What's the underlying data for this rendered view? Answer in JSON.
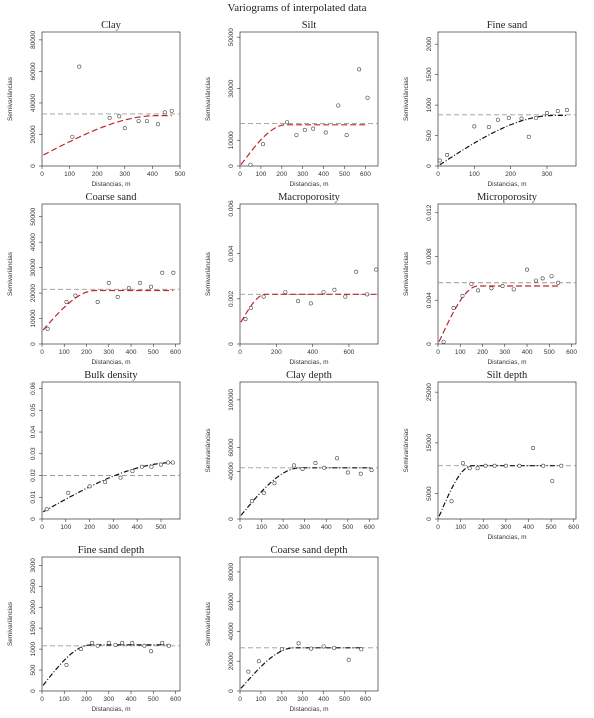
{
  "page_title": "Variograms of interpolated data",
  "colors": {
    "red_model": "#c0262c",
    "black_model": "#111111",
    "sill_line": "#999999",
    "point_stroke": "#444444"
  },
  "chart_data": [
    {
      "type": "scatter",
      "title": "Clay",
      "xlabel": "Distancias, m",
      "ylabel": "Semivariâncias",
      "xticks": [
        0,
        100,
        200,
        300,
        400,
        500
      ],
      "yticks": [
        0,
        20000,
        40000,
        60000,
        80000
      ],
      "xlim": [
        0,
        500
      ],
      "ylim": [
        0,
        85000
      ],
      "points": [
        [
          110,
          18500
        ],
        [
          135,
          63000
        ],
        [
          245,
          30500
        ],
        [
          280,
          31500
        ],
        [
          300,
          24000
        ],
        [
          350,
          28500
        ],
        [
          380,
          28500
        ],
        [
          420,
          26500
        ],
        [
          445,
          34000
        ],
        [
          470,
          35000
        ]
      ],
      "model": {
        "nugget": 6500,
        "sill": 32000,
        "range": 420,
        "kind": "spherical",
        "style": "red-dashed"
      },
      "sill_line": 33000
    },
    {
      "type": "scatter",
      "title": "Silt",
      "xlabel": "Distancias, m",
      "ylabel": "Semivariâncias",
      "xticks": [
        0,
        100,
        200,
        300,
        400,
        500,
        600
      ],
      "yticks": [
        0,
        10000,
        30000,
        50000
      ],
      "xlim": [
        0,
        660
      ],
      "ylim": [
        0,
        52000
      ],
      "points": [
        [
          50,
          500
        ],
        [
          110,
          8500
        ],
        [
          225,
          17000
        ],
        [
          270,
          12000
        ],
        [
          310,
          14000
        ],
        [
          350,
          14500
        ],
        [
          410,
          13000
        ],
        [
          470,
          23500
        ],
        [
          510,
          12000
        ],
        [
          570,
          37500
        ],
        [
          610,
          26500
        ]
      ],
      "model": {
        "nugget": 0,
        "sill": 16000,
        "range": 220,
        "kind": "spherical",
        "style": "red-dashed"
      },
      "sill_line": 16500
    },
    {
      "type": "scatter",
      "title": "Fine sand",
      "xlabel": "Distancias, m",
      "ylabel": "Semivariâncias",
      "xticks": [
        0,
        100,
        200,
        300
      ],
      "yticks": [
        0,
        500,
        1000,
        1500,
        2000
      ],
      "xlim": [
        0,
        380
      ],
      "ylim": [
        0,
        2200
      ],
      "points": [
        [
          5,
          90
        ],
        [
          25,
          180
        ],
        [
          100,
          650
        ],
        [
          140,
          640
        ],
        [
          165,
          760
        ],
        [
          195,
          790
        ],
        [
          230,
          780
        ],
        [
          250,
          480
        ],
        [
          270,
          790
        ],
        [
          300,
          870
        ],
        [
          330,
          900
        ],
        [
          355,
          920
        ]
      ],
      "model": {
        "nugget": 0,
        "sill": 830,
        "range": 320,
        "kind": "spherical",
        "style": "black-dashdot"
      },
      "sill_line": 840
    },
    {
      "type": "scatter",
      "title": "Coarse sand",
      "xlabel": "Distancias, m",
      "ylabel": "Semivariâncias",
      "xticks": [
        0,
        100,
        200,
        300,
        400,
        500,
        600
      ],
      "yticks": [
        0,
        10000,
        20000,
        30000,
        40000,
        50000
      ],
      "xlim": [
        0,
        620
      ],
      "ylim": [
        0,
        55000
      ],
      "points": [
        [
          25,
          6000
        ],
        [
          110,
          16500
        ],
        [
          150,
          19000
        ],
        [
          250,
          16500
        ],
        [
          300,
          24000
        ],
        [
          340,
          18500
        ],
        [
          390,
          22000
        ],
        [
          440,
          24000
        ],
        [
          490,
          22500
        ],
        [
          540,
          28000
        ],
        [
          590,
          28000
        ]
      ],
      "model": {
        "nugget": 5000,
        "sill": 21000,
        "range": 240,
        "kind": "spherical",
        "style": "red-dashed"
      },
      "sill_line": 21500
    },
    {
      "type": "scatter",
      "title": "Macroporosity",
      "xlabel": "Distancias, m",
      "ylabel": "Semivariâncias",
      "xticks": [
        0,
        200,
        400,
        600
      ],
      "yticks": [
        0,
        0.002,
        0.004,
        0.006
      ],
      "xlim": [
        0,
        760
      ],
      "ylim": [
        0,
        0.0062
      ],
      "points": [
        [
          30,
          0.0011
        ],
        [
          60,
          0.0016
        ],
        [
          130,
          0.0021
        ],
        [
          250,
          0.0023
        ],
        [
          320,
          0.0019
        ],
        [
          390,
          0.0018
        ],
        [
          460,
          0.0023
        ],
        [
          520,
          0.0024
        ],
        [
          580,
          0.0021
        ],
        [
          640,
          0.0032
        ],
        [
          700,
          0.0022
        ],
        [
          750,
          0.0033
        ]
      ],
      "model": {
        "nugget": 0.0009,
        "sill": 0.0022,
        "range": 140,
        "kind": "spherical",
        "style": "red-dashed"
      },
      "sill_line": 0.0022
    },
    {
      "type": "scatter",
      "title": "Microporosity",
      "xlabel": "Distancias, m",
      "ylabel": "Semivariâncias",
      "xticks": [
        0,
        100,
        200,
        300,
        400,
        500,
        600
      ],
      "yticks": [
        0,
        0.004,
        0.008,
        0.012
      ],
      "xlim": [
        0,
        620
      ],
      "ylim": [
        0,
        0.0128
      ],
      "points": [
        [
          25,
          0.0002
        ],
        [
          70,
          0.0033
        ],
        [
          110,
          0.0044
        ],
        [
          150,
          0.0055
        ],
        [
          180,
          0.0049
        ],
        [
          240,
          0.0051
        ],
        [
          290,
          0.0053
        ],
        [
          340,
          0.005
        ],
        [
          400,
          0.0068
        ],
        [
          440,
          0.0058
        ],
        [
          470,
          0.006
        ],
        [
          510,
          0.0062
        ],
        [
          540,
          0.0056
        ]
      ],
      "model": {
        "nugget": 0,
        "sill": 0.0053,
        "range": 180,
        "kind": "spherical",
        "style": "red-dashed"
      },
      "sill_line": 0.0056
    },
    {
      "type": "scatter",
      "title": "Bulk density",
      "xlabel": "",
      "ylabel": "",
      "xticks": [
        0,
        100,
        200,
        300,
        400,
        500
      ],
      "yticks": [
        0,
        0.01,
        0.02,
        0.03,
        0.04,
        0.05,
        0.06
      ],
      "xlim": [
        0,
        580
      ],
      "ylim": [
        0,
        0.063
      ],
      "points": [
        [
          20,
          0.0045
        ],
        [
          110,
          0.012
        ],
        [
          200,
          0.015
        ],
        [
          265,
          0.017
        ],
        [
          330,
          0.019
        ],
        [
          380,
          0.022
        ],
        [
          420,
          0.024
        ],
        [
          460,
          0.024
        ],
        [
          500,
          0.025
        ],
        [
          530,
          0.026
        ],
        [
          550,
          0.026
        ]
      ],
      "model": {
        "nugget": 0.003,
        "sill": 0.026,
        "range": 560,
        "kind": "spherical",
        "style": "black-dashdot"
      },
      "sill_line": 0.02
    },
    {
      "type": "scatter",
      "title": "Clay depth",
      "xlabel": "",
      "ylabel": "Semivariâncias",
      "xticks": [
        0,
        100,
        200,
        300,
        400,
        500,
        600
      ],
      "yticks": [
        0,
        40000,
        60000,
        100000
      ],
      "xlim": [
        0,
        640
      ],
      "ylim": [
        0,
        115000
      ],
      "points": [
        [
          55,
          15000
        ],
        [
          110,
          22000
        ],
        [
          160,
          30000
        ],
        [
          250,
          45000
        ],
        [
          290,
          42000
        ],
        [
          350,
          47000
        ],
        [
          390,
          43000
        ],
        [
          450,
          51000
        ],
        [
          500,
          39000
        ],
        [
          560,
          38000
        ],
        [
          610,
          41000
        ]
      ],
      "model": {
        "nugget": 2000,
        "sill": 43000,
        "range": 280,
        "kind": "spherical",
        "style": "black-dashdot"
      },
      "sill_line": 43000
    },
    {
      "type": "scatter",
      "title": "Silt depth",
      "xlabel": "Distancias, m",
      "ylabel": "Semivariâncias",
      "xticks": [
        0,
        100,
        200,
        300,
        400,
        500,
        600
      ],
      "yticks": [
        0,
        5000,
        15000,
        25000
      ],
      "xlim": [
        0,
        610
      ],
      "ylim": [
        0,
        27000
      ],
      "points": [
        [
          60,
          3500
        ],
        [
          110,
          11000
        ],
        [
          140,
          10000
        ],
        [
          175,
          10000
        ],
        [
          210,
          10500
        ],
        [
          250,
          10500
        ],
        [
          300,
          10500
        ],
        [
          360,
          10500
        ],
        [
          420,
          14000
        ],
        [
          465,
          10500
        ],
        [
          505,
          7500
        ],
        [
          545,
          10500
        ]
      ],
      "model": {
        "nugget": 0,
        "sill": 10500,
        "range": 150,
        "kind": "spherical",
        "style": "black-dashdot"
      },
      "sill_line": 10500
    },
    {
      "type": "scatter",
      "title": "Fine sand depth",
      "xlabel": "Distancias, m",
      "ylabel": "Semivariâncias",
      "xticks": [
        0,
        100,
        200,
        300,
        400,
        500,
        600
      ],
      "yticks": [
        0,
        500,
        1000,
        1500,
        2000,
        2500,
        3000
      ],
      "xlim": [
        0,
        620
      ],
      "ylim": [
        0,
        3200
      ],
      "points": [
        [
          110,
          620
        ],
        [
          175,
          1000
        ],
        [
          225,
          1150
        ],
        [
          250,
          1080
        ],
        [
          300,
          1150
        ],
        [
          330,
          1100
        ],
        [
          360,
          1150
        ],
        [
          405,
          1150
        ],
        [
          460,
          1080
        ],
        [
          490,
          950
        ],
        [
          540,
          1150
        ],
        [
          570,
          1080
        ]
      ],
      "model": {
        "nugget": 100,
        "sill": 1100,
        "range": 220,
        "kind": "spherical",
        "style": "black-dashdot"
      },
      "sill_line": 1080
    },
    {
      "type": "scatter",
      "title": "Coarse sand depth",
      "xlabel": "Distancias, m",
      "ylabel": "Semivariâncias",
      "xticks": [
        0,
        100,
        200,
        300,
        400,
        500,
        600
      ],
      "yticks": [
        0,
        20000,
        40000,
        60000,
        80000
      ],
      "xlim": [
        0,
        660
      ],
      "ylim": [
        0,
        90000
      ],
      "points": [
        [
          40,
          13000
        ],
        [
          90,
          20000
        ],
        [
          200,
          28000
        ],
        [
          280,
          32000
        ],
        [
          340,
          28500
        ],
        [
          400,
          30000
        ],
        [
          450,
          29000
        ],
        [
          520,
          21000
        ],
        [
          580,
          28000
        ]
      ],
      "model": {
        "nugget": 1000,
        "sill": 29000,
        "range": 260,
        "kind": "spherical",
        "style": "black-dashdot"
      },
      "sill_line": 29000
    }
  ]
}
